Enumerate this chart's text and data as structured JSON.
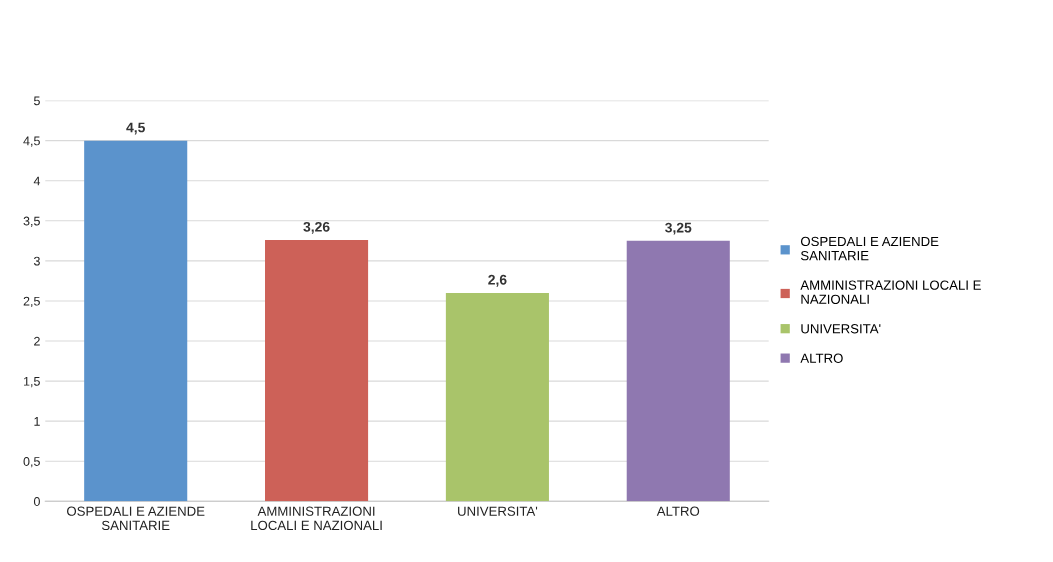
{
  "chart_data": {
    "type": "bar",
    "categories": [
      "OSPEDALI E AZIENDE SANITARIE",
      "AMMINISTRAZIONI LOCALI E NAZIONALI",
      "UNIVERSITA'",
      "ALTRO"
    ],
    "series": [
      {
        "name": "OSPEDALI E AZIENDE SANITARIE",
        "color": "#5b93cc",
        "values": [
          4.5,
          null,
          null,
          null
        ],
        "value_labels": [
          "4,5",
          null,
          null,
          null
        ]
      },
      {
        "name": "AMMINISTRAZIONI LOCALI E NAZIONALI",
        "color": "#cd6158",
        "values": [
          null,
          3.26,
          null,
          null
        ],
        "value_labels": [
          null,
          "3,26",
          null,
          null
        ]
      },
      {
        "name": "UNIVERSITA'",
        "color": "#a9c46a",
        "values": [
          null,
          null,
          2.6,
          null
        ],
        "value_labels": [
          null,
          null,
          "2,6",
          null
        ]
      },
      {
        "name": "ALTRO",
        "color": "#8f78b0",
        "values": [
          null,
          null,
          null,
          3.25
        ],
        "value_labels": [
          null,
          null,
          null,
          "3,25"
        ]
      }
    ],
    "ylim": [
      0,
      5
    ],
    "yticks": [
      0,
      {
        "value": 0.5,
        "label": "0,5"
      },
      1,
      {
        "value": 1.5,
        "label": "1,5"
      },
      2,
      {
        "value": 2.5,
        "label": "2,5"
      },
      3,
      {
        "value": 3.5,
        "label": "3,5"
      },
      4,
      {
        "value": 4.5,
        "label": "4,5"
      },
      5
    ],
    "grid": "y",
    "legend": "right"
  }
}
